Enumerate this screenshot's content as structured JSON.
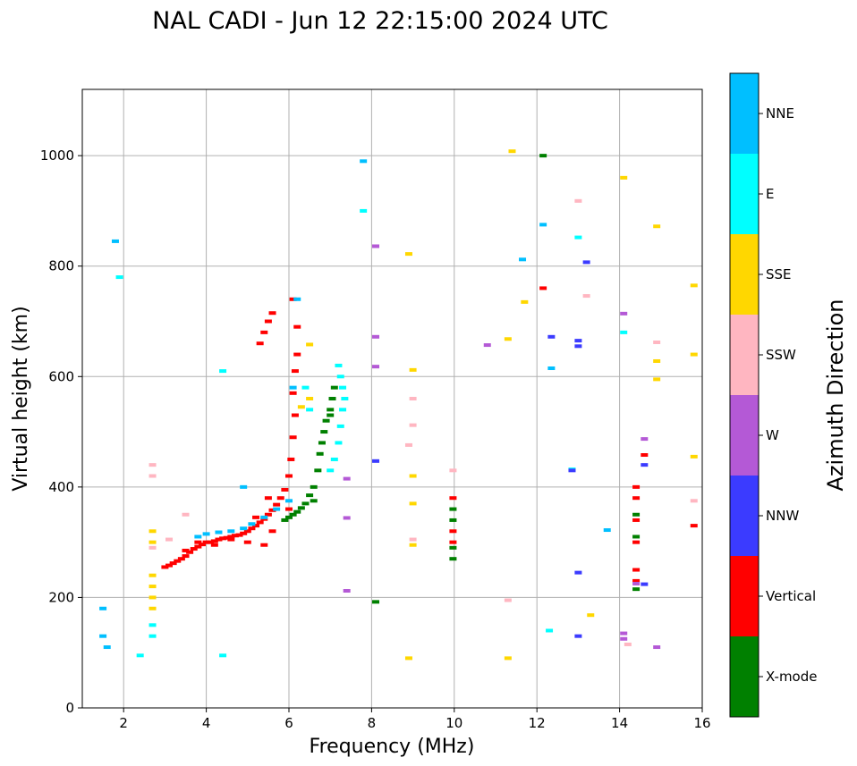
{
  "chart_data": {
    "type": "scatter",
    "title": "NAL CADI - Jun 12 22:15:00 2024 UTC",
    "xlabel": "Frequency (MHz)",
    "ylabel": "Virtual height (km)",
    "xlim": [
      1,
      16
    ],
    "ylim": [
      0,
      1120
    ],
    "xticks": [
      2,
      4,
      6,
      8,
      10,
      12,
      14,
      16
    ],
    "yticks": [
      0,
      200,
      400,
      600,
      800,
      1000
    ],
    "grid": true,
    "colorbar": {
      "label": "Azimuth Direction",
      "categories": [
        {
          "name": "X-mode",
          "color": "#008000"
        },
        {
          "name": "Vertical",
          "color": "#ff0000"
        },
        {
          "name": "NNW",
          "color": "#3b3bff"
        },
        {
          "name": "W",
          "color": "#b459d6"
        },
        {
          "name": "SSW",
          "color": "#ffb6c1"
        },
        {
          "name": "SSE",
          "color": "#ffd700"
        },
        {
          "name": "E",
          "color": "#00ffff"
        },
        {
          "name": "NNE",
          "color": "#00bfff"
        }
      ]
    },
    "series": [
      {
        "name": "Vertical",
        "points": [
          [
            3.0,
            255
          ],
          [
            3.1,
            258
          ],
          [
            3.2,
            262
          ],
          [
            3.3,
            266
          ],
          [
            3.4,
            270
          ],
          [
            3.5,
            275
          ],
          [
            3.6,
            282
          ],
          [
            3.7,
            288
          ],
          [
            3.8,
            292
          ],
          [
            3.9,
            296
          ],
          [
            4.0,
            300
          ],
          [
            4.1,
            300
          ],
          [
            4.2,
            302
          ],
          [
            4.3,
            305
          ],
          [
            4.4,
            307
          ],
          [
            4.5,
            308
          ],
          [
            4.6,
            310
          ],
          [
            4.7,
            312
          ],
          [
            4.8,
            313
          ],
          [
            4.9,
            316
          ],
          [
            5.0,
            320
          ],
          [
            5.1,
            325
          ],
          [
            5.2,
            330
          ],
          [
            5.3,
            336
          ],
          [
            5.4,
            342
          ],
          [
            5.5,
            350
          ],
          [
            5.6,
            358
          ],
          [
            5.7,
            368
          ],
          [
            5.8,
            380
          ],
          [
            5.9,
            395
          ],
          [
            6.0,
            420
          ],
          [
            6.05,
            450
          ],
          [
            6.1,
            490
          ],
          [
            6.15,
            530
          ],
          [
            6.1,
            570
          ],
          [
            6.15,
            610
          ],
          [
            6.2,
            640
          ],
          [
            6.2,
            690
          ],
          [
            6.1,
            740
          ],
          [
            5.3,
            660
          ],
          [
            5.4,
            680
          ],
          [
            5.5,
            700
          ],
          [
            5.6,
            715
          ],
          [
            3.5,
            285
          ],
          [
            3.8,
            300
          ],
          [
            4.2,
            295
          ],
          [
            4.6,
            305
          ],
          [
            5.0,
            300
          ],
          [
            5.4,
            295
          ],
          [
            5.6,
            320
          ],
          [
            5.2,
            345
          ],
          [
            5.5,
            380
          ],
          [
            6.0,
            360
          ],
          [
            9.97,
            300
          ],
          [
            9.97,
            320
          ],
          [
            9.97,
            380
          ],
          [
            14.4,
            230
          ],
          [
            14.4,
            250
          ],
          [
            14.4,
            300
          ],
          [
            14.4,
            340
          ],
          [
            14.4,
            380
          ],
          [
            14.4,
            400
          ],
          [
            12.15,
            760
          ],
          [
            14.6,
            458
          ],
          [
            15.8,
            330
          ]
        ]
      },
      {
        "name": "X-mode",
        "points": [
          [
            5.9,
            340
          ],
          [
            6.0,
            345
          ],
          [
            6.1,
            350
          ],
          [
            6.2,
            355
          ],
          [
            6.3,
            362
          ],
          [
            6.4,
            370
          ],
          [
            6.5,
            385
          ],
          [
            6.6,
            400
          ],
          [
            6.7,
            430
          ],
          [
            6.75,
            460
          ],
          [
            6.8,
            480
          ],
          [
            6.85,
            500
          ],
          [
            6.9,
            520
          ],
          [
            7.0,
            540
          ],
          [
            7.05,
            560
          ],
          [
            7.1,
            580
          ],
          [
            7.0,
            530
          ],
          [
            6.6,
            375
          ],
          [
            9.97,
            270
          ],
          [
            9.97,
            290
          ],
          [
            9.97,
            340
          ],
          [
            9.97,
            360
          ],
          [
            14.4,
            215
          ],
          [
            14.4,
            310
          ],
          [
            14.4,
            350
          ],
          [
            8.1,
            192
          ],
          [
            12.15,
            1000
          ]
        ]
      },
      {
        "name": "NNE",
        "points": [
          [
            3.8,
            310
          ],
          [
            4.0,
            315
          ],
          [
            4.3,
            318
          ],
          [
            4.6,
            320
          ],
          [
            4.9,
            325
          ],
          [
            5.1,
            333
          ],
          [
            5.4,
            345
          ],
          [
            5.7,
            360
          ],
          [
            6.0,
            375
          ],
          [
            6.1,
            580
          ],
          [
            6.2,
            740
          ],
          [
            4.9,
            400
          ],
          [
            1.5,
            180
          ],
          [
            1.5,
            130
          ],
          [
            1.6,
            110
          ],
          [
            1.8,
            845
          ],
          [
            7.8,
            990
          ],
          [
            12.15,
            875
          ],
          [
            12.35,
            615
          ],
          [
            13.7,
            322
          ],
          [
            11.65,
            812
          ]
        ]
      },
      {
        "name": "E",
        "points": [
          [
            7.2,
            620
          ],
          [
            7.25,
            600
          ],
          [
            7.3,
            580
          ],
          [
            7.35,
            560
          ],
          [
            7.3,
            540
          ],
          [
            7.25,
            510
          ],
          [
            7.2,
            480
          ],
          [
            7.1,
            450
          ],
          [
            7.0,
            430
          ],
          [
            6.4,
            580
          ],
          [
            6.5,
            540
          ],
          [
            2.7,
            150
          ],
          [
            2.7,
            130
          ],
          [
            4.4,
            610
          ],
          [
            4.4,
            95
          ],
          [
            2.4,
            95
          ],
          [
            7.8,
            900
          ],
          [
            12.3,
            140
          ],
          [
            13.0,
            852
          ],
          [
            14.1,
            680
          ],
          [
            1.9,
            780
          ],
          [
            12.85,
            432
          ]
        ]
      },
      {
        "name": "SSE",
        "points": [
          [
            2.7,
            180
          ],
          [
            2.7,
            200
          ],
          [
            2.7,
            220
          ],
          [
            2.7,
            240
          ],
          [
            2.7,
            300
          ],
          [
            2.7,
            320
          ],
          [
            6.5,
            560
          ],
          [
            6.3,
            545
          ],
          [
            6.5,
            658
          ],
          [
            8.9,
            822
          ],
          [
            9.0,
            612
          ],
          [
            9.0,
            420
          ],
          [
            9.0,
            370
          ],
          [
            9.0,
            295
          ],
          [
            8.9,
            90
          ],
          [
            11.3,
            668
          ],
          [
            11.3,
            90
          ],
          [
            11.4,
            1008
          ],
          [
            11.7,
            735
          ],
          [
            13.3,
            168
          ],
          [
            14.1,
            960
          ],
          [
            14.9,
            628
          ],
          [
            14.9,
            595
          ],
          [
            14.9,
            872
          ],
          [
            15.8,
            765
          ],
          [
            15.8,
            640
          ],
          [
            15.8,
            455
          ]
        ]
      },
      {
        "name": "SSW",
        "points": [
          [
            2.7,
            440
          ],
          [
            2.7,
            420
          ],
          [
            2.7,
            290
          ],
          [
            3.1,
            305
          ],
          [
            9.0,
            560
          ],
          [
            9.0,
            512
          ],
          [
            8.9,
            476
          ],
          [
            9.0,
            305
          ],
          [
            9.97,
            430
          ],
          [
            11.3,
            195
          ],
          [
            13.0,
            918
          ],
          [
            13.2,
            746
          ],
          [
            14.9,
            662
          ],
          [
            15.8,
            375
          ],
          [
            14.2,
            115
          ],
          [
            3.5,
            350
          ]
        ]
      },
      {
        "name": "W",
        "points": [
          [
            8.1,
            836
          ],
          [
            8.1,
            672
          ],
          [
            8.1,
            618
          ],
          [
            10.8,
            657
          ],
          [
            14.1,
            714
          ],
          [
            14.1,
            135
          ],
          [
            14.1,
            125
          ],
          [
            14.6,
            487
          ],
          [
            14.9,
            110
          ],
          [
            7.4,
            212
          ],
          [
            7.4,
            415
          ],
          [
            7.4,
            344
          ],
          [
            14.4,
            225
          ]
        ]
      },
      {
        "name": "NNW",
        "points": [
          [
            8.1,
            447
          ],
          [
            12.35,
            672
          ],
          [
            13.0,
            665
          ],
          [
            13.0,
            655
          ],
          [
            13.2,
            807
          ],
          [
            13.0,
            245
          ],
          [
            13.0,
            130
          ],
          [
            14.6,
            440
          ],
          [
            14.6,
            224
          ],
          [
            12.85,
            430
          ]
        ]
      }
    ]
  }
}
